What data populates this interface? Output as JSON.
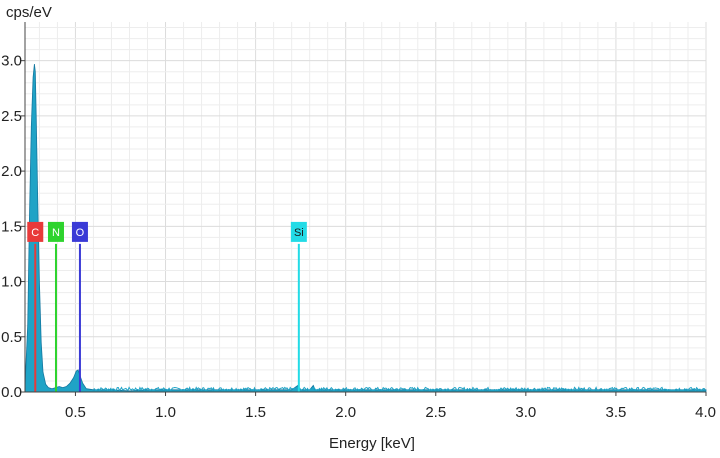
{
  "chart_data": {
    "type": "area",
    "ylabel": "cps/eV",
    "xlabel": "Energy [keV]",
    "xlim": [
      0.22,
      4.0
    ],
    "ylim": [
      0,
      3.35
    ],
    "xticks": [
      0.5,
      1.0,
      1.5,
      2.0,
      2.5,
      3.0,
      3.5,
      4.0
    ],
    "xtick_labels": [
      "0.5",
      "1.0",
      "1.5",
      "2.0",
      "2.5",
      "3.0",
      "3.5",
      "4.0"
    ],
    "yticks": [
      0.0,
      0.5,
      1.0,
      1.5,
      2.0,
      2.5,
      3.0
    ],
    "ytick_labels": [
      "0.0",
      "0.5",
      "1.0",
      "1.5",
      "2.0",
      "2.5",
      "3.0"
    ],
    "grid": true,
    "series": [
      {
        "color": "#1fa3c6",
        "x": [
          0.22,
          0.235,
          0.245,
          0.255,
          0.265,
          0.272,
          0.277,
          0.282,
          0.29,
          0.3,
          0.31,
          0.32,
          0.335,
          0.35,
          0.37,
          0.39,
          0.41,
          0.43,
          0.45,
          0.47,
          0.49,
          0.505,
          0.515,
          0.525,
          0.54,
          0.56,
          0.6,
          0.7,
          0.8,
          0.9,
          1.0,
          1.2,
          1.4,
          1.6,
          1.7,
          1.735,
          1.745,
          1.76,
          1.8,
          1.82,
          1.83,
          1.84,
          1.9,
          2.2,
          2.5,
          3.0,
          3.5,
          4.0
        ],
        "y": [
          0.05,
          0.6,
          1.6,
          2.4,
          2.85,
          2.97,
          2.9,
          2.5,
          1.8,
          1.0,
          0.45,
          0.18,
          0.07,
          0.04,
          0.03,
          0.04,
          0.05,
          0.04,
          0.05,
          0.08,
          0.13,
          0.19,
          0.2,
          0.15,
          0.08,
          0.03,
          0.02,
          0.02,
          0.01,
          0.02,
          0.02,
          0.02,
          0.02,
          0.02,
          0.02,
          0.06,
          0.02,
          0.02,
          0.02,
          0.06,
          0.02,
          0.02,
          0.02,
          0.02,
          0.02,
          0.02,
          0.02,
          0.02
        ]
      }
    ],
    "element_markers": [
      {
        "label": "C",
        "energy": 0.277,
        "height": 1.35,
        "color": "#e83a3a",
        "text_color": "#ffffff"
      },
      {
        "label": "N",
        "energy": 0.392,
        "height": 1.35,
        "color": "#2ed32e",
        "text_color": "#ffffff"
      },
      {
        "label": "O",
        "energy": 0.525,
        "height": 1.35,
        "color": "#3a3ad6",
        "text_color": "#ffffff"
      },
      {
        "label": "Si",
        "energy": 1.74,
        "height": 1.35,
        "color": "#22dbe6",
        "text_color": "#1a1a1a"
      }
    ]
  }
}
